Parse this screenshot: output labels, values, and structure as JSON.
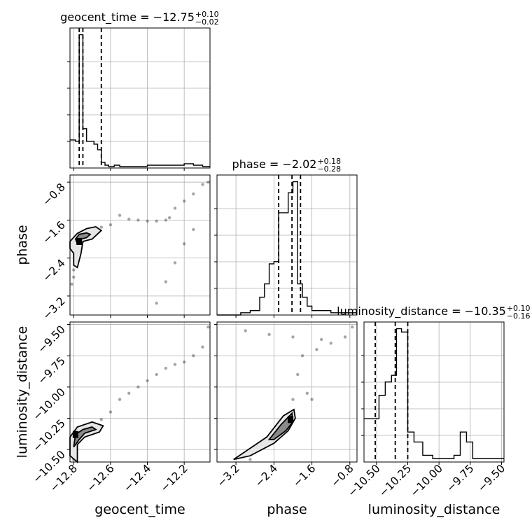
{
  "chart_data": {
    "type": "corner",
    "parameters": [
      {
        "name": "geocent_time",
        "label": "geocent_time",
        "range": [
          -12.82,
          -12.06
        ],
        "ticks": [
          -12.8,
          -12.6,
          -12.4,
          -12.2
        ],
        "tick_labels": [
          "−12.8",
          "−12.6",
          "−12.4",
          "−12.2"
        ],
        "quantiles": [
          -12.77,
          -12.75,
          -12.65
        ],
        "title": {
          "prefix": "geocent_time = ",
          "value": "−12.75",
          "plus": "+0.10",
          "minus": "−0.02"
        },
        "histogram": {
          "edges": [
            -12.82,
            -12.79,
            -12.77,
            -12.75,
            -12.73,
            -12.71,
            -12.69,
            -12.67,
            -12.65,
            -12.63,
            -12.61,
            -12.58,
            -12.55,
            -12.5,
            -12.45,
            -12.4,
            -12.3,
            -12.2,
            -12.15,
            -12.1,
            -12.06
          ],
          "counts": [
            20,
            19,
            95,
            28,
            19,
            19,
            17,
            13,
            4,
            2,
            1,
            2,
            1,
            1,
            1,
            2,
            2,
            3,
            2,
            1
          ]
        }
      },
      {
        "name": "phase",
        "label": "phase",
        "range": [
          -3.6,
          -0.65
        ],
        "ticks": [
          -3.2,
          -2.4,
          -1.6,
          -0.8
        ],
        "tick_labels": [
          "−3.2",
          "−2.4",
          "−1.6",
          "−0.8"
        ],
        "quantiles": [
          -2.3,
          -2.02,
          -1.84
        ],
        "title": {
          "prefix": "phase = ",
          "value": "−2.02",
          "plus": "+0.18",
          "minus": "−0.28"
        },
        "histogram": {
          "edges": [
            -3.6,
            -3.1,
            -2.9,
            -2.7,
            -2.6,
            -2.5,
            -2.4,
            -2.3,
            -2.2,
            -2.1,
            -2.0,
            -1.9,
            -1.8,
            -1.7,
            -1.6,
            -1.45,
            -1.2,
            -0.65
          ],
          "counts": [
            0,
            1,
            2,
            8,
            14,
            23,
            24,
            46,
            46,
            55,
            60,
            14,
            8,
            4,
            2,
            2,
            1
          ]
        }
      },
      {
        "name": "luminosity_distance",
        "label": "luminosity_distance",
        "range": [
          -10.6,
          -9.48
        ],
        "ticks": [
          -10.5,
          -10.25,
          -10.0,
          -9.75,
          -9.5
        ],
        "tick_labels": [
          "−10.50",
          "−10.25",
          "−10.00",
          "−9.75",
          "−9.50"
        ],
        "quantiles": [
          -10.51,
          -10.35,
          -10.25
        ],
        "title": {
          "prefix": "luminosity_distance = ",
          "value": "−10.35",
          "plus": "+0.10",
          "minus": "−0.16"
        },
        "histogram": {
          "edges": [
            -10.6,
            -10.48,
            -10.43,
            -10.38,
            -10.34,
            -10.3,
            -10.25,
            -10.2,
            -10.13,
            -10.05,
            -9.98,
            -9.88,
            -9.83,
            -9.78,
            -9.73,
            -9.68,
            -9.6,
            -9.54,
            -9.48
          ],
          "counts": [
            13,
            20,
            24,
            26,
            40,
            39,
            9,
            6,
            2,
            1,
            1,
            2,
            9,
            6,
            1,
            1,
            1,
            1
          ]
        }
      }
    ],
    "grid": true,
    "pairs": [
      {
        "x": "geocent_time",
        "y": "phase",
        "scatter": [
          [
            -12.81,
            -2.95
          ],
          [
            -12.8,
            -2.8
          ],
          [
            -12.8,
            -2.65
          ],
          [
            -12.79,
            -2.5
          ],
          [
            -12.78,
            -2.35
          ],
          [
            -12.77,
            -2.2
          ],
          [
            -12.75,
            -2.05
          ],
          [
            -12.73,
            -1.9
          ],
          [
            -12.7,
            -1.8
          ],
          [
            -12.65,
            -1.75
          ],
          [
            -12.6,
            -1.7
          ],
          [
            -12.55,
            -1.5
          ],
          [
            -12.5,
            -1.58
          ],
          [
            -12.45,
            -1.6
          ],
          [
            -12.4,
            -1.62
          ],
          [
            -12.35,
            -1.62
          ],
          [
            -12.3,
            -1.6
          ],
          [
            -12.28,
            -1.55
          ],
          [
            -12.25,
            -1.35
          ],
          [
            -12.2,
            -1.2
          ],
          [
            -12.15,
            -1.05
          ],
          [
            -12.1,
            -0.85
          ],
          [
            -12.07,
            -0.8
          ],
          [
            -12.35,
            -3.35
          ],
          [
            -12.3,
            -2.9
          ],
          [
            -12.25,
            -2.5
          ],
          [
            -12.2,
            -2.1
          ],
          [
            -12.15,
            -1.8
          ]
        ],
        "contours": [
          [
            [
              -12.82,
              -2.05
            ],
            [
              -12.78,
              -1.88
            ],
            [
              -12.73,
              -1.78
            ],
            [
              -12.68,
              -1.74
            ],
            [
              -12.65,
              -1.82
            ],
            [
              -12.7,
              -2.0
            ],
            [
              -12.75,
              -2.05
            ],
            [
              -12.76,
              -2.3
            ],
            [
              -12.78,
              -2.6
            ],
            [
              -12.8,
              -2.55
            ],
            [
              -12.8,
              -2.3
            ],
            [
              -12.82,
              -2.2
            ]
          ],
          [
            [
              -12.79,
              -2.0
            ],
            [
              -12.77,
              -1.9
            ],
            [
              -12.73,
              -1.87
            ],
            [
              -12.71,
              -1.9
            ],
            [
              -12.73,
              -1.97
            ],
            [
              -12.76,
              -2.0
            ],
            [
              -12.78,
              -2.1
            ]
          ]
        ],
        "density_peak": [
          -12.77,
          -2.05
        ]
      },
      {
        "x": "geocent_time",
        "y": "luminosity_distance",
        "scatter": [
          [
            -12.8,
            -10.58
          ],
          [
            -12.79,
            -10.5
          ],
          [
            -12.78,
            -10.42
          ],
          [
            -12.75,
            -10.35
          ],
          [
            -12.7,
            -10.3
          ],
          [
            -12.65,
            -10.26
          ],
          [
            -12.6,
            -10.2
          ],
          [
            -12.55,
            -10.1
          ],
          [
            -12.5,
            -10.05
          ],
          [
            -12.45,
            -10.0
          ],
          [
            -12.4,
            -9.95
          ],
          [
            -12.35,
            -9.9
          ],
          [
            -12.3,
            -9.85
          ],
          [
            -12.25,
            -9.82
          ],
          [
            -12.2,
            -9.8
          ],
          [
            -12.15,
            -9.75
          ],
          [
            -12.1,
            -9.68
          ],
          [
            -12.07,
            -9.52
          ]
        ],
        "contours": [
          [
            [
              -12.82,
              -10.55
            ],
            [
              -12.82,
              -10.4
            ],
            [
              -12.78,
              -10.32
            ],
            [
              -12.7,
              -10.28
            ],
            [
              -12.64,
              -10.31
            ],
            [
              -12.66,
              -10.36
            ],
            [
              -12.74,
              -10.4
            ],
            [
              -12.78,
              -10.46
            ],
            [
              -12.78,
              -10.6
            ]
          ],
          [
            [
              -12.8,
              -10.48
            ],
            [
              -12.79,
              -10.38
            ],
            [
              -12.75,
              -10.34
            ],
            [
              -12.7,
              -10.32
            ],
            [
              -12.68,
              -10.34
            ],
            [
              -12.74,
              -10.37
            ],
            [
              -12.77,
              -10.42
            ]
          ]
        ],
        "density_peak": [
          -12.79,
          -10.38
        ]
      },
      {
        "x": "phase",
        "y": "luminosity_distance",
        "scatter": [
          [
            -2.9,
            -10.58
          ],
          [
            -2.6,
            -10.45
          ],
          [
            -2.3,
            -10.3
          ],
          [
            -2.0,
            -10.1
          ],
          [
            -1.9,
            -9.9
          ],
          [
            -1.8,
            -9.75
          ],
          [
            -1.5,
            -9.7
          ],
          [
            -1.2,
            -9.65
          ],
          [
            -0.9,
            -9.6
          ],
          [
            -0.75,
            -9.52
          ],
          [
            -1.7,
            -10.05
          ],
          [
            -1.6,
            -10.1
          ],
          [
            -3.0,
            -9.55
          ],
          [
            -2.5,
            -9.58
          ],
          [
            -2.0,
            -9.6
          ],
          [
            -1.4,
            -9.62
          ]
        ],
        "contours": [
          [
            [
              -3.25,
              -10.58
            ],
            [
              -2.55,
              -10.4
            ],
            [
              -2.2,
              -10.23
            ],
            [
              -1.98,
              -10.18
            ],
            [
              -1.95,
              -10.25
            ],
            [
              -2.1,
              -10.35
            ],
            [
              -2.4,
              -10.45
            ],
            [
              -2.9,
              -10.55
            ]
          ],
          [
            [
              -2.5,
              -10.42
            ],
            [
              -2.25,
              -10.3
            ],
            [
              -2.02,
              -10.21
            ],
            [
              -2.0,
              -10.28
            ],
            [
              -2.15,
              -10.35
            ],
            [
              -2.4,
              -10.42
            ]
          ]
        ],
        "density_peak": [
          -2.05,
          -10.26
        ]
      }
    ]
  }
}
